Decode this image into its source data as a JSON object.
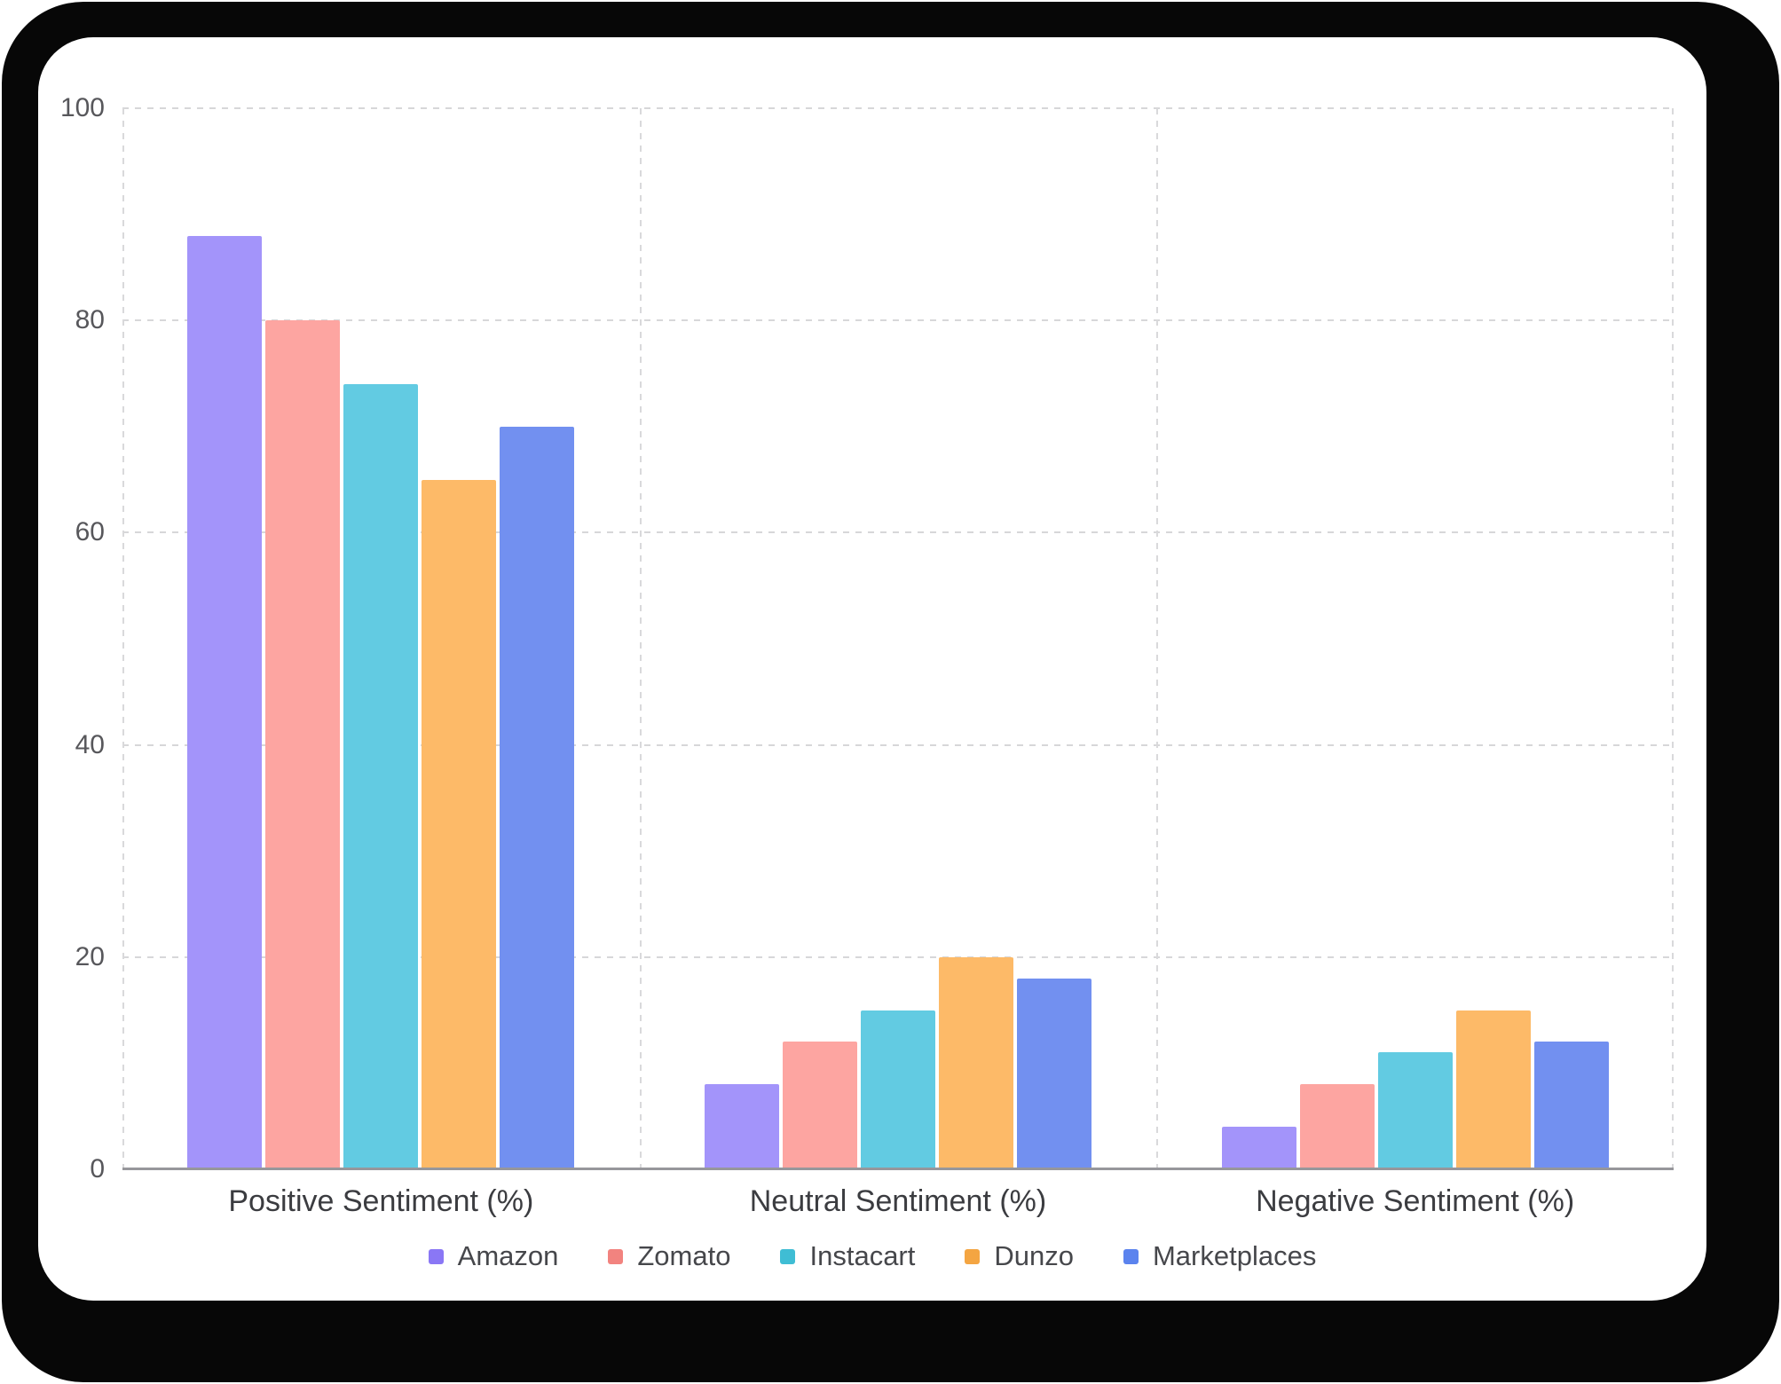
{
  "window": {
    "frame_color": "#070707",
    "card_color": "#ffffff"
  },
  "chart_data": {
    "type": "bar",
    "title": "",
    "categories": [
      "Positive Sentiment (%)",
      "Neutral Sentiment (%)",
      "Negative Sentiment (%)"
    ],
    "series": [
      {
        "name": "Amazon",
        "fill_color": "#a394fa",
        "legend_swatch_color": "#8a77f5",
        "values": [
          88,
          8,
          4
        ]
      },
      {
        "name": "Zomato",
        "fill_color": "#fda5a1",
        "legend_swatch_color": "#f2837f",
        "values": [
          80,
          12,
          8
        ]
      },
      {
        "name": "Instacart",
        "fill_color": "#62cbe2",
        "legend_swatch_color": "#3fbdd4",
        "values": [
          74,
          15,
          11
        ]
      },
      {
        "name": "Dunzo",
        "fill_color": "#fdba68",
        "legend_swatch_color": "#f4a542",
        "values": [
          65,
          20,
          15
        ]
      },
      {
        "name": "Marketplaces",
        "fill_color": "#7290f0",
        "legend_swatch_color": "#5b83ee",
        "values": [
          70,
          18,
          12
        ]
      }
    ],
    "y_axis": {
      "min": 0,
      "max": 100,
      "ticks": [
        0,
        20,
        40,
        60,
        80,
        100
      ],
      "tick_color": "#57575b"
    },
    "x_axis": {
      "label_color": "#3b3c40"
    },
    "grid": {
      "style": "dashed",
      "color": "#d8d8da",
      "axis_line_color": "#97979b",
      "vertical_separators": true
    },
    "legend": {
      "position": "bottom",
      "label_color": "#46474b"
    }
  }
}
